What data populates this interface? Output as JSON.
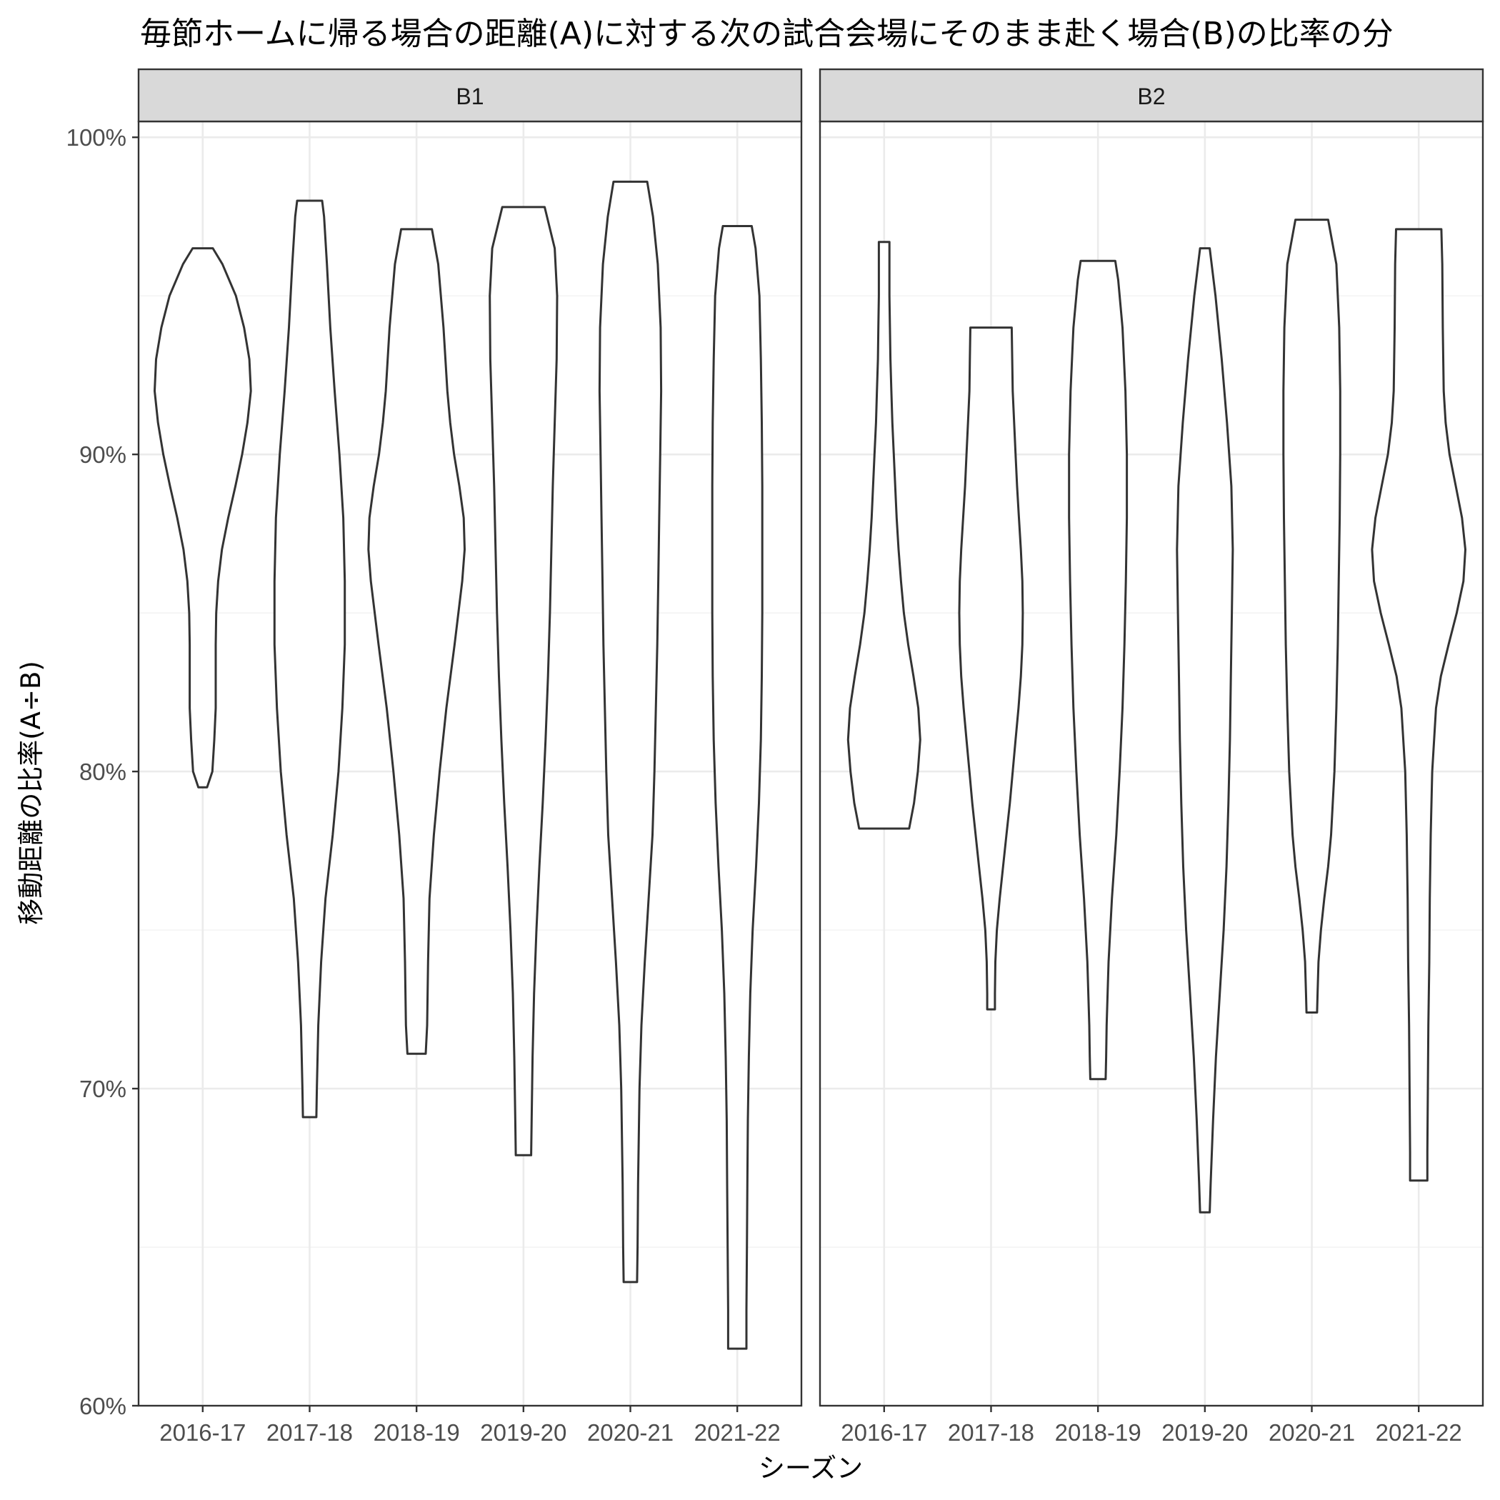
{
  "chart_data": {
    "type": "violin",
    "title": "毎節ホームに帰る場合の距離(A)に対する次の試合会場にそのまま赴く場合(B)の比率の分",
    "xlabel": "シーズン",
    "ylabel": "移動距離の比率(A÷B)",
    "ylim": [
      0.6,
      1.0
    ],
    "y_ticks": [
      {
        "value": 0.6,
        "label": "60%"
      },
      {
        "value": 0.7,
        "label": "70%"
      },
      {
        "value": 0.8,
        "label": "80%"
      },
      {
        "value": 0.9,
        "label": "90%"
      },
      {
        "value": 1.0,
        "label": "100%"
      }
    ],
    "categories": [
      "2016-17",
      "2017-18",
      "2018-19",
      "2019-20",
      "2020-21",
      "2021-22"
    ],
    "grid": true,
    "facets": [
      {
        "label": "B1",
        "violins": [
          {
            "category": "2016-17",
            "min": 0.795,
            "max": 0.965,
            "profile": [
              [
                0.795,
                0.09
              ],
              [
                0.8,
                0.2
              ],
              [
                0.81,
                0.24
              ],
              [
                0.82,
                0.27
              ],
              [
                0.83,
                0.27
              ],
              [
                0.84,
                0.27
              ],
              [
                0.85,
                0.28
              ],
              [
                0.86,
                0.32
              ],
              [
                0.87,
                0.4
              ],
              [
                0.88,
                0.53
              ],
              [
                0.89,
                0.68
              ],
              [
                0.9,
                0.82
              ],
              [
                0.91,
                0.93
              ],
              [
                0.92,
                1.0
              ],
              [
                0.93,
                0.97
              ],
              [
                0.94,
                0.86
              ],
              [
                0.95,
                0.69
              ],
              [
                0.96,
                0.41
              ],
              [
                0.965,
                0.21
              ]
            ]
          },
          {
            "category": "2017-18",
            "min": 0.691,
            "max": 0.98,
            "profile": [
              [
                0.691,
                0.14
              ],
              [
                0.7,
                0.15
              ],
              [
                0.72,
                0.18
              ],
              [
                0.74,
                0.24
              ],
              [
                0.76,
                0.33
              ],
              [
                0.78,
                0.48
              ],
              [
                0.8,
                0.6
              ],
              [
                0.82,
                0.68
              ],
              [
                0.84,
                0.73
              ],
              [
                0.86,
                0.73
              ],
              [
                0.88,
                0.7
              ],
              [
                0.9,
                0.62
              ],
              [
                0.92,
                0.52
              ],
              [
                0.94,
                0.43
              ],
              [
                0.96,
                0.36
              ],
              [
                0.975,
                0.3
              ],
              [
                0.98,
                0.26
              ]
            ]
          },
          {
            "category": "2018-19",
            "min": 0.711,
            "max": 0.971,
            "profile": [
              [
                0.711,
                0.19
              ],
              [
                0.72,
                0.22
              ],
              [
                0.74,
                0.24
              ],
              [
                0.76,
                0.27
              ],
              [
                0.78,
                0.36
              ],
              [
                0.8,
                0.48
              ],
              [
                0.82,
                0.62
              ],
              [
                0.84,
                0.79
              ],
              [
                0.86,
                0.95
              ],
              [
                0.87,
                1.0
              ],
              [
                0.88,
                0.98
              ],
              [
                0.89,
                0.89
              ],
              [
                0.9,
                0.78
              ],
              [
                0.91,
                0.7
              ],
              [
                0.92,
                0.64
              ],
              [
                0.94,
                0.56
              ],
              [
                0.96,
                0.45
              ],
              [
                0.971,
                0.32
              ]
            ]
          },
          {
            "category": "2019-20",
            "min": 0.679,
            "max": 0.978,
            "profile": [
              [
                0.679,
                0.16
              ],
              [
                0.69,
                0.17
              ],
              [
                0.71,
                0.19
              ],
              [
                0.73,
                0.22
              ],
              [
                0.75,
                0.27
              ],
              [
                0.77,
                0.33
              ],
              [
                0.79,
                0.4
              ],
              [
                0.81,
                0.46
              ],
              [
                0.83,
                0.51
              ],
              [
                0.85,
                0.55
              ],
              [
                0.87,
                0.58
              ],
              [
                0.89,
                0.61
              ],
              [
                0.91,
                0.65
              ],
              [
                0.93,
                0.69
              ],
              [
                0.95,
                0.7
              ],
              [
                0.965,
                0.65
              ],
              [
                0.978,
                0.44
              ]
            ]
          },
          {
            "category": "2020-21",
            "min": 0.639,
            "max": 0.986,
            "profile": [
              [
                0.639,
                0.14
              ],
              [
                0.65,
                0.15
              ],
              [
                0.67,
                0.16
              ],
              [
                0.7,
                0.19
              ],
              [
                0.72,
                0.23
              ],
              [
                0.74,
                0.3
              ],
              [
                0.76,
                0.38
              ],
              [
                0.78,
                0.46
              ],
              [
                0.8,
                0.5
              ],
              [
                0.82,
                0.53
              ],
              [
                0.84,
                0.56
              ],
              [
                0.86,
                0.58
              ],
              [
                0.88,
                0.6
              ],
              [
                0.9,
                0.62
              ],
              [
                0.92,
                0.64
              ],
              [
                0.94,
                0.63
              ],
              [
                0.96,
                0.57
              ],
              [
                0.975,
                0.47
              ],
              [
                0.986,
                0.35
              ]
            ]
          },
          {
            "category": "2021-22",
            "min": 0.618,
            "max": 0.972,
            "profile": [
              [
                0.618,
                0.19
              ],
              [
                0.63,
                0.19
              ],
              [
                0.65,
                0.2
              ],
              [
                0.67,
                0.21
              ],
              [
                0.69,
                0.22
              ],
              [
                0.71,
                0.24
              ],
              [
                0.73,
                0.27
              ],
              [
                0.75,
                0.32
              ],
              [
                0.77,
                0.39
              ],
              [
                0.79,
                0.45
              ],
              [
                0.81,
                0.49
              ],
              [
                0.83,
                0.51
              ],
              [
                0.85,
                0.52
              ],
              [
                0.87,
                0.52
              ],
              [
                0.89,
                0.52
              ],
              [
                0.91,
                0.51
              ],
              [
                0.93,
                0.49
              ],
              [
                0.95,
                0.46
              ],
              [
                0.965,
                0.38
              ],
              [
                0.972,
                0.3
              ]
            ]
          }
        ]
      },
      {
        "label": "B2",
        "violins": [
          {
            "category": "2016-17",
            "min": 0.782,
            "max": 0.967,
            "profile": [
              [
                0.782,
                0.52
              ],
              [
                0.79,
                0.62
              ],
              [
                0.8,
                0.7
              ],
              [
                0.81,
                0.75
              ],
              [
                0.82,
                0.71
              ],
              [
                0.83,
                0.61
              ],
              [
                0.84,
                0.5
              ],
              [
                0.85,
                0.41
              ],
              [
                0.86,
                0.35
              ],
              [
                0.87,
                0.3
              ],
              [
                0.88,
                0.26
              ],
              [
                0.89,
                0.23
              ],
              [
                0.9,
                0.2
              ],
              [
                0.91,
                0.17
              ],
              [
                0.92,
                0.15
              ],
              [
                0.93,
                0.13
              ],
              [
                0.94,
                0.12
              ],
              [
                0.95,
                0.11
              ],
              [
                0.96,
                0.11
              ],
              [
                0.967,
                0.11
              ]
            ]
          },
          {
            "category": "2017-18",
            "min": 0.725,
            "max": 0.94,
            "profile": [
              [
                0.725,
                0.08
              ],
              [
                0.73,
                0.08
              ],
              [
                0.74,
                0.09
              ],
              [
                0.75,
                0.12
              ],
              [
                0.76,
                0.18
              ],
              [
                0.77,
                0.25
              ],
              [
                0.78,
                0.32
              ],
              [
                0.79,
                0.39
              ],
              [
                0.8,
                0.45
              ],
              [
                0.81,
                0.51
              ],
              [
                0.82,
                0.57
              ],
              [
                0.83,
                0.62
              ],
              [
                0.84,
                0.65
              ],
              [
                0.85,
                0.66
              ],
              [
                0.86,
                0.65
              ],
              [
                0.87,
                0.62
              ],
              [
                0.88,
                0.58
              ],
              [
                0.89,
                0.54
              ],
              [
                0.9,
                0.51
              ],
              [
                0.91,
                0.48
              ],
              [
                0.92,
                0.45
              ],
              [
                0.93,
                0.44
              ],
              [
                0.94,
                0.43
              ]
            ]
          },
          {
            "category": "2018-19",
            "min": 0.703,
            "max": 0.961,
            "profile": [
              [
                0.703,
                0.16
              ],
              [
                0.71,
                0.17
              ],
              [
                0.72,
                0.18
              ],
              [
                0.74,
                0.22
              ],
              [
                0.76,
                0.29
              ],
              [
                0.78,
                0.38
              ],
              [
                0.8,
                0.45
              ],
              [
                0.82,
                0.51
              ],
              [
                0.84,
                0.55
              ],
              [
                0.86,
                0.58
              ],
              [
                0.88,
                0.6
              ],
              [
                0.9,
                0.6
              ],
              [
                0.92,
                0.57
              ],
              [
                0.94,
                0.51
              ],
              [
                0.955,
                0.42
              ],
              [
                0.961,
                0.36
              ]
            ]
          },
          {
            "category": "2019-20",
            "min": 0.661,
            "max": 0.965,
            "profile": [
              [
                0.661,
                0.1
              ],
              [
                0.67,
                0.12
              ],
              [
                0.69,
                0.17
              ],
              [
                0.71,
                0.23
              ],
              [
                0.73,
                0.31
              ],
              [
                0.75,
                0.39
              ],
              [
                0.77,
                0.45
              ],
              [
                0.79,
                0.49
              ],
              [
                0.81,
                0.52
              ],
              [
                0.83,
                0.54
              ],
              [
                0.85,
                0.56
              ],
              [
                0.87,
                0.58
              ],
              [
                0.89,
                0.55
              ],
              [
                0.91,
                0.46
              ],
              [
                0.93,
                0.35
              ],
              [
                0.95,
                0.22
              ],
              [
                0.965,
                0.1
              ]
            ]
          },
          {
            "category": "2020-21",
            "min": 0.724,
            "max": 0.974,
            "profile": [
              [
                0.724,
                0.11
              ],
              [
                0.73,
                0.12
              ],
              [
                0.74,
                0.14
              ],
              [
                0.75,
                0.19
              ],
              [
                0.76,
                0.26
              ],
              [
                0.77,
                0.34
              ],
              [
                0.78,
                0.4
              ],
              [
                0.8,
                0.47
              ],
              [
                0.82,
                0.51
              ],
              [
                0.84,
                0.54
              ],
              [
                0.86,
                0.56
              ],
              [
                0.88,
                0.58
              ],
              [
                0.9,
                0.59
              ],
              [
                0.92,
                0.59
              ],
              [
                0.94,
                0.57
              ],
              [
                0.96,
                0.51
              ],
              [
                0.974,
                0.34
              ]
            ]
          },
          {
            "category": "2021-22",
            "min": 0.671,
            "max": 0.971,
            "profile": [
              [
                0.671,
                0.18
              ],
              [
                0.68,
                0.18
              ],
              [
                0.7,
                0.19
              ],
              [
                0.72,
                0.2
              ],
              [
                0.74,
                0.22
              ],
              [
                0.76,
                0.23
              ],
              [
                0.78,
                0.25
              ],
              [
                0.8,
                0.28
              ],
              [
                0.82,
                0.36
              ],
              [
                0.83,
                0.46
              ],
              [
                0.84,
                0.62
              ],
              [
                0.85,
                0.79
              ],
              [
                0.86,
                0.93
              ],
              [
                0.87,
                0.97
              ],
              [
                0.88,
                0.9
              ],
              [
                0.89,
                0.77
              ],
              [
                0.9,
                0.64
              ],
              [
                0.91,
                0.56
              ],
              [
                0.92,
                0.52
              ],
              [
                0.94,
                0.5
              ],
              [
                0.96,
                0.49
              ],
              [
                0.971,
                0.47
              ]
            ]
          }
        ]
      }
    ]
  }
}
